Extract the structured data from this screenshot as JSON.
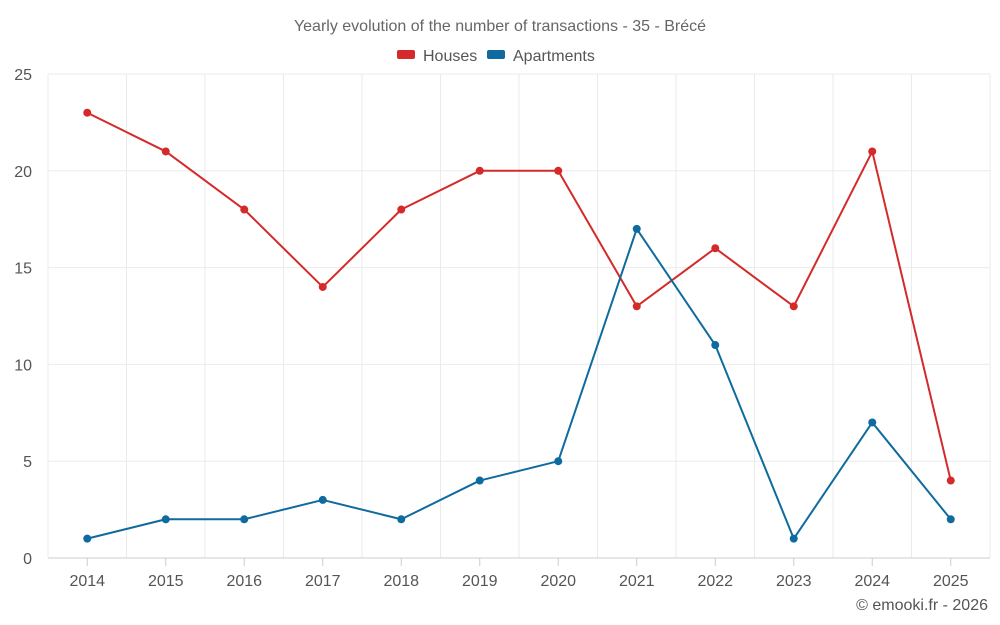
{
  "chart_data": {
    "type": "line",
    "title": "Yearly evolution of the number of transactions - 35 - Brécé",
    "categories": [
      "2014",
      "2015",
      "2016",
      "2017",
      "2018",
      "2019",
      "2020",
      "2021",
      "2022",
      "2023",
      "2024",
      "2025"
    ],
    "ylim": [
      0,
      25
    ],
    "yticks": [
      0,
      5,
      10,
      15,
      20,
      25
    ],
    "grid": true,
    "legend_position": "top-center",
    "series": [
      {
        "name": "Houses",
        "color": "#d42a2a",
        "values": [
          23,
          21,
          18,
          14,
          18,
          20,
          20,
          13,
          16,
          13,
          21,
          4
        ]
      },
      {
        "name": "Apartments",
        "color": "#0f6b9e",
        "values": [
          1,
          2,
          2,
          3,
          2,
          4,
          5,
          17,
          11,
          1,
          7,
          2
        ]
      }
    ]
  },
  "credit": "© emooki.fr - 2026"
}
